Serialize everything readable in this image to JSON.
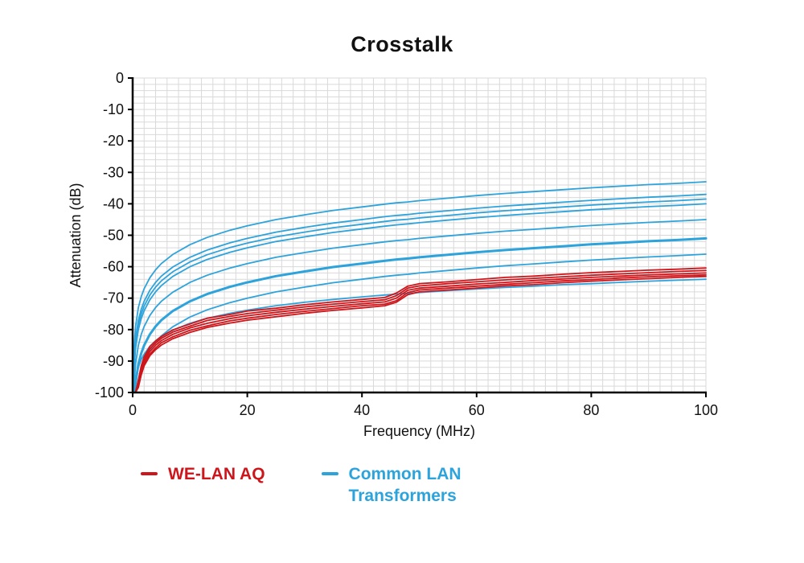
{
  "title": "Crosstalk",
  "colors": {
    "red": "#cc161b",
    "blue": "#2da3dc",
    "grid": "#d9d9d9",
    "axis": "#000000",
    "text": "#111111"
  },
  "legend": {
    "items": [
      {
        "label": "WE-LAN AQ",
        "color": "#cc161b"
      },
      {
        "label": "Common LAN Transformers",
        "label_line1": "Common LAN",
        "label_line2": "Transformers",
        "color": "#2da3dc"
      }
    ]
  },
  "chart_data": {
    "type": "line",
    "title": "Crosstalk",
    "xlabel": "Frequency (MHz)",
    "ylabel": "Attenuation (dB)",
    "xlim": [
      0,
      100
    ],
    "ylim": [
      -100,
      0
    ],
    "x_ticks": [
      0,
      20,
      40,
      60,
      80,
      100
    ],
    "y_ticks": [
      0,
      -10,
      -20,
      -30,
      -40,
      -50,
      -60,
      -70,
      -80,
      -90,
      -100
    ],
    "grid": true,
    "grid_step": [
      2,
      2
    ],
    "legend_position": "bottom",
    "x": [
      0.1,
      0.2,
      0.5,
      1,
      1.5,
      2,
      3,
      4,
      5,
      7,
      10,
      13,
      17,
      20,
      25,
      30,
      35,
      40,
      44,
      46,
      48,
      50,
      55,
      60,
      65,
      70,
      75,
      80,
      85,
      90,
      95,
      100
    ],
    "series": [
      {
        "name": "Common LAN Transformers 1",
        "group": "Common LAN Transformers",
        "color": "#2da3dc",
        "width": 1.8,
        "values": [
          -93,
          -87,
          -79,
          -73,
          -69.5,
          -67,
          -63.5,
          -61,
          -59,
          -56.1,
          -53,
          -50.7,
          -48.4,
          -47,
          -45,
          -43.5,
          -42.1,
          -41,
          -40.1,
          -39.7,
          -39.4,
          -39,
          -38.2,
          -37.4,
          -36.7,
          -36.1,
          -35.5,
          -34.9,
          -34.4,
          -33.9,
          -33.5,
          -33
        ]
      },
      {
        "name": "Common LAN Transformers 2",
        "group": "Common LAN Transformers",
        "color": "#2da3dc",
        "width": 1.8,
        "values": [
          -97,
          -91,
          -83,
          -77,
          -73.5,
          -71,
          -67.5,
          -65,
          -63,
          -60.1,
          -57,
          -54.7,
          -52.4,
          -51,
          -49,
          -47.5,
          -46.1,
          -45,
          -44.1,
          -43.7,
          -43.4,
          -43,
          -42.2,
          -41.4,
          -40.7,
          -40.1,
          -39.5,
          -38.9,
          -38.4,
          -37.9,
          -37.5,
          -37
        ]
      },
      {
        "name": "Common LAN Transformers 3",
        "group": "Common LAN Transformers",
        "color": "#2da3dc",
        "width": 1.8,
        "values": [
          -98.5,
          -92.5,
          -84.5,
          -78.5,
          -75,
          -72.5,
          -69,
          -66.5,
          -64.5,
          -61.6,
          -58.5,
          -56.2,
          -53.9,
          -52.5,
          -50.5,
          -49,
          -47.6,
          -46.5,
          -45.6,
          -45.2,
          -44.9,
          -44.5,
          -43.7,
          -42.9,
          -42.2,
          -41.6,
          -41,
          -40.4,
          -39.9,
          -39.4,
          -39,
          -38.5
        ]
      },
      {
        "name": "Common LAN Transformers 4",
        "group": "Common LAN Transformers",
        "color": "#2da3dc",
        "width": 1.8,
        "values": [
          -100,
          -94,
          -86,
          -80,
          -76.5,
          -74,
          -70.5,
          -68,
          -66,
          -63.1,
          -60,
          -57.7,
          -55.4,
          -54,
          -52,
          -50.5,
          -49.1,
          -48,
          -47.1,
          -46.7,
          -46.4,
          -46,
          -45.2,
          -44.4,
          -43.7,
          -43.1,
          -42.5,
          -41.9,
          -41.4,
          -40.9,
          -40.5,
          -40
        ]
      },
      {
        "name": "Common LAN Transformers 5",
        "group": "Common LAN Transformers",
        "color": "#2da3dc",
        "width": 1.8,
        "values": [
          -100,
          -99,
          -91,
          -85,
          -81.5,
          -79,
          -75.5,
          -73,
          -71,
          -68.1,
          -65,
          -62.7,
          -60.4,
          -59,
          -57,
          -55.5,
          -54.1,
          -53,
          -52.1,
          -51.7,
          -51.4,
          -51,
          -50.2,
          -49.4,
          -48.7,
          -48.1,
          -47.5,
          -46.9,
          -46.4,
          -45.9,
          -45.5,
          -45
        ]
      },
      {
        "name": "Common LAN Transformers 6",
        "group": "Common LAN Transformers",
        "color": "#2da3dc",
        "width": 3,
        "values": [
          -100,
          -100,
          -97,
          -91,
          -87.5,
          -85,
          -81.5,
          -79,
          -77,
          -74.1,
          -71,
          -68.7,
          -66.4,
          -65,
          -63,
          -61.5,
          -60.1,
          -59,
          -58.1,
          -57.7,
          -57.4,
          -57,
          -56.2,
          -55.4,
          -54.7,
          -54.1,
          -53.5,
          -52.9,
          -52.4,
          -51.9,
          -51.5,
          -51
        ]
      },
      {
        "name": "Common LAN Transformers 7",
        "group": "Common LAN Transformers",
        "color": "#2da3dc",
        "width": 1.8,
        "values": [
          -100,
          -100,
          -100,
          -96,
          -92.5,
          -90,
          -86.5,
          -84,
          -82,
          -79.1,
          -76,
          -73.7,
          -71.4,
          -70,
          -68,
          -66.5,
          -65.1,
          -64,
          -63.1,
          -62.7,
          -62.4,
          -62,
          -61.2,
          -60.4,
          -59.7,
          -59.1,
          -58.5,
          -57.9,
          -57.4,
          -56.9,
          -56.5,
          -56
        ]
      },
      {
        "name": "Common LAN Transformers 8",
        "group": "Common LAN Transformers",
        "color": "#2da3dc",
        "width": 1.8,
        "values": [
          -100,
          -100,
          -96.2,
          -92,
          -89.5,
          -87.8,
          -85.3,
          -83.6,
          -82.2,
          -80.2,
          -78,
          -76.4,
          -74.8,
          -73.8,
          -72.4,
          -71.3,
          -70.4,
          -69.6,
          -69,
          -68.7,
          -68.5,
          -68.2,
          -67.6,
          -67.1,
          -66.6,
          -66.2,
          -65.7,
          -65.4,
          -65,
          -64.6,
          -64.3,
          -64
        ]
      },
      {
        "name": "WE-LAN AQ 1",
        "group": "WE-LAN AQ",
        "color": "#cc161b",
        "width": 1.8,
        "values": [
          -100,
          -100,
          -100,
          -96,
          -91.5,
          -88.6,
          -85.4,
          -83.6,
          -82.2,
          -80.1,
          -78.2,
          -76.4,
          -75.2,
          -74.1,
          -73.2,
          -72.1,
          -71.2,
          -70.4,
          -69.8,
          -68.4,
          -66.2,
          -65.4,
          -64.8,
          -64.1,
          -63.4,
          -63,
          -62.4,
          -61.9,
          -61.5,
          -61.1,
          -60.8,
          -60.4
        ]
      },
      {
        "name": "WE-LAN AQ 2",
        "group": "WE-LAN AQ",
        "color": "#cc161b",
        "width": 1.8,
        "values": [
          -100,
          -100,
          -100,
          -96.6,
          -92.2,
          -89.4,
          -86.1,
          -84.3,
          -82.8,
          -80.8,
          -78.9,
          -77.1,
          -75.8,
          -74.9,
          -73.8,
          -72.8,
          -71.9,
          -71.1,
          -70.5,
          -69.2,
          -66.8,
          -66.1,
          -65.4,
          -64.8,
          -64.2,
          -63.7,
          -63.2,
          -62.7,
          -62.3,
          -61.9,
          -61.5,
          -61.2
        ]
      },
      {
        "name": "WE-LAN AQ 3",
        "group": "WE-LAN AQ",
        "color": "#cc161b",
        "width": 1.8,
        "values": [
          -100,
          -100,
          -100,
          -97.2,
          -93,
          -90,
          -87,
          -85,
          -83.5,
          -81.5,
          -79.5,
          -78,
          -76.5,
          -75.6,
          -74.5,
          -73.5,
          -72.6,
          -71.8,
          -71.2,
          -70,
          -67.5,
          -66.8,
          -66.2,
          -65.5,
          -65,
          -64.4,
          -63.9,
          -63.4,
          -63,
          -62.6,
          -62.3,
          -62
        ]
      },
      {
        "name": "WE-LAN AQ 4",
        "group": "WE-LAN AQ",
        "color": "#cc161b",
        "width": 1.8,
        "values": [
          -100,
          -100,
          -100,
          -97.8,
          -93.8,
          -90.8,
          -87.8,
          -85.8,
          -84.2,
          -82.3,
          -80.2,
          -78.8,
          -77.2,
          -76.4,
          -75.2,
          -74.2,
          -73.3,
          -72.4,
          -71.9,
          -70.8,
          -68.2,
          -67.4,
          -66.8,
          -66.2,
          -65.6,
          -65.1,
          -64.5,
          -64.1,
          -63.6,
          -63.2,
          -62.9,
          -62.6
        ]
      },
      {
        "name": "WE-LAN AQ 5",
        "group": "WE-LAN AQ",
        "color": "#cc161b",
        "width": 1.8,
        "values": [
          -100,
          -100,
          -100,
          -98.4,
          -94.4,
          -91.5,
          -88.3,
          -86.4,
          -84.9,
          -82.9,
          -80.9,
          -79.3,
          -77.9,
          -77,
          -75.9,
          -74.8,
          -73.9,
          -73.1,
          -72.4,
          -71.3,
          -68.9,
          -68,
          -67.4,
          -66.8,
          -66.1,
          -65.7,
          -65.1,
          -64.6,
          -64.2,
          -63.8,
          -63.4,
          -63.1
        ]
      }
    ]
  }
}
